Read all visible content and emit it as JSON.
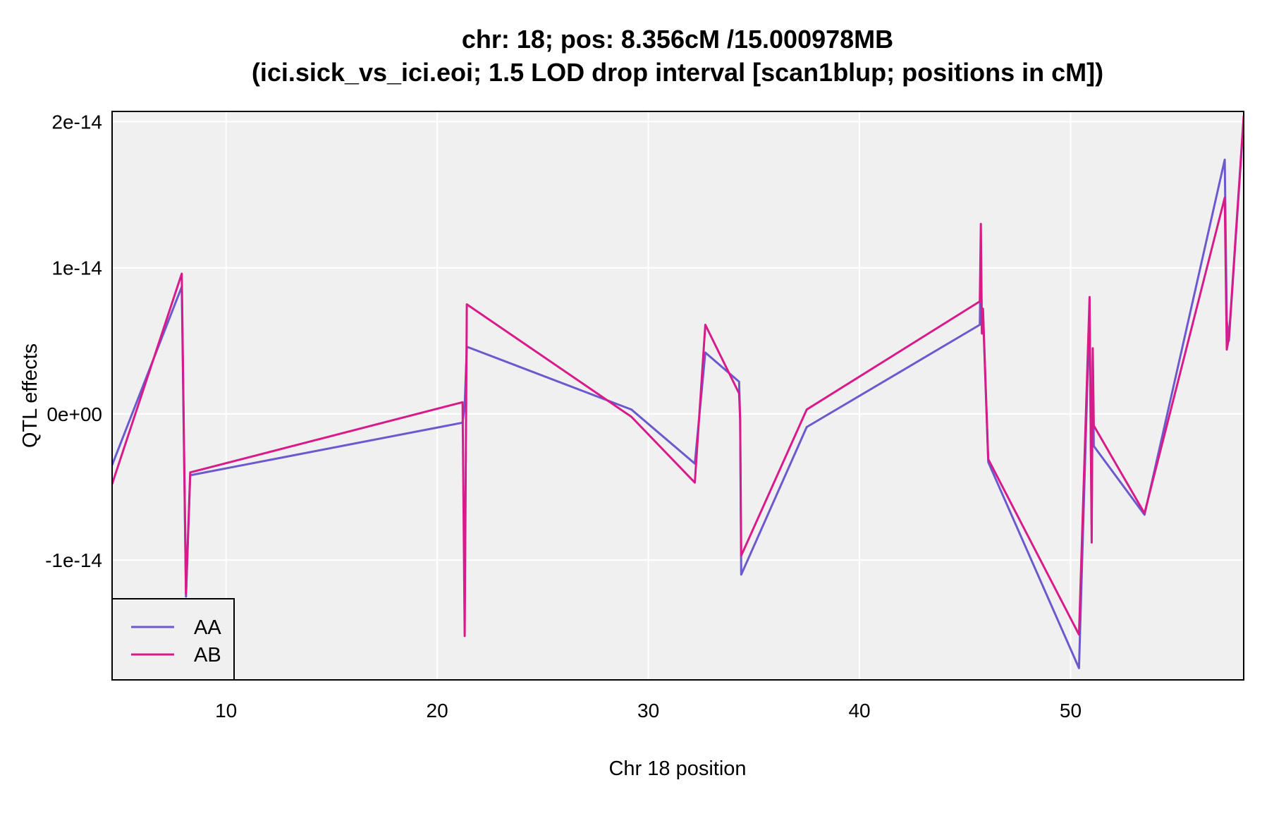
{
  "chart_data": {
    "type": "line",
    "title": "chr: 18; pos: 8.356cM /15.000978MB",
    "subtitle": "(ici.sick_vs_ici.eoi; 1.5 LOD drop interval [scan1blup; positions in cM])",
    "xlabel": "Chr 18 position",
    "ylabel": "QTL effects",
    "xlim": [
      4.6,
      58.2
    ],
    "ylim": [
      -1.82e-14,
      2.07e-14
    ],
    "x_ticks": [
      10,
      20,
      30,
      40,
      50
    ],
    "x_tick_labels": [
      "10",
      "20",
      "30",
      "40",
      "50"
    ],
    "y_ticks": [
      -1e-14,
      0,
      1e-14,
      2e-14
    ],
    "y_tick_labels": [
      "-1e-14",
      "0e+00",
      "1e-14",
      "2e-14"
    ],
    "grid": true,
    "background": "#f0f0f0",
    "legend_position": "bottom-left",
    "series": [
      {
        "name": "AA",
        "color": "#6a5acd",
        "x": [
          4.6,
          7.9,
          8.1,
          8.3,
          21.2,
          21.3,
          21.4,
          29.2,
          32.2,
          32.7,
          34.3,
          34.35,
          34.4,
          37.5,
          45.7,
          45.75,
          45.8,
          45.85,
          46.1,
          50.4,
          50.9,
          51.0,
          51.05,
          51.1,
          53.5,
          57.3,
          57.4,
          57.5,
          58.2
        ],
        "values": [
          -3.5e-15,
          8.7e-15,
          -1.25e-14,
          -4.2e-15,
          -6e-16,
          6e-16,
          4.6e-15,
          3e-16,
          -3.4e-15,
          4.2e-15,
          2.2e-15,
          -4e-16,
          -1.1e-14,
          -9e-16,
          6.1e-15,
          1.1e-14,
          5.6e-15,
          7e-15,
          -3.3e-15,
          -1.74e-14,
          7.2e-15,
          -7.6e-15,
          3.8e-15,
          -2.2e-15,
          -6.9e-15,
          1.74e-14,
          6.4e-15,
          5e-15,
          2.02e-14
        ]
      },
      {
        "name": "AB",
        "color": "#d81b8a",
        "x": [
          4.6,
          7.9,
          8.1,
          8.3,
          21.2,
          21.3,
          21.4,
          29.2,
          32.2,
          32.7,
          34.3,
          34.35,
          34.4,
          37.5,
          45.7,
          45.75,
          45.8,
          45.85,
          46.1,
          50.4,
          50.9,
          51.0,
          51.05,
          51.1,
          53.5,
          57.3,
          57.4,
          57.5,
          58.2
        ],
        "values": [
          -4.8e-15,
          9.6e-15,
          -1.23e-14,
          -4e-15,
          8e-16,
          -1.52e-14,
          7.5e-15,
          -2e-16,
          -4.7e-15,
          6.1e-15,
          1.4e-15,
          -4e-16,
          -9.7e-15,
          3e-16,
          7.7e-15,
          1.3e-14,
          5.5e-15,
          7.2e-15,
          -3.1e-15,
          -1.51e-14,
          8e-15,
          -8.8e-15,
          4.5e-15,
          -8e-16,
          -6.8e-15,
          1.48e-14,
          4.4e-15,
          5.2e-15,
          2.04e-14
        ]
      }
    ]
  }
}
